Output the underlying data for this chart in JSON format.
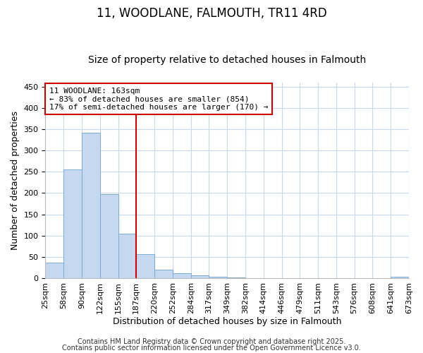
{
  "title": "11, WOODLANE, FALMOUTH, TR11 4RD",
  "subtitle": "Size of property relative to detached houses in Falmouth",
  "xlabel": "Distribution of detached houses by size in Falmouth",
  "ylabel": "Number of detached properties",
  "bar_values": [
    37,
    256,
    341,
    198,
    104,
    57,
    20,
    11,
    7,
    4,
    1,
    0,
    0,
    0,
    0,
    0,
    0,
    0,
    0,
    4
  ],
  "tick_labels": [
    "25sqm",
    "58sqm",
    "90sqm",
    "122sqm",
    "155sqm",
    "187sqm",
    "220sqm",
    "252sqm",
    "284sqm",
    "317sqm",
    "349sqm",
    "382sqm",
    "414sqm",
    "446sqm",
    "479sqm",
    "511sqm",
    "543sqm",
    "576sqm",
    "608sqm",
    "641sqm",
    "673sqm"
  ],
  "bar_color": "#c5d8f0",
  "bar_edge_color": "#7aadd4",
  "vline_color": "#cc0000",
  "ylim": [
    0,
    460
  ],
  "yticks": [
    0,
    50,
    100,
    150,
    200,
    250,
    300,
    350,
    400,
    450
  ],
  "annotation_line1": "11 WOODLANE: 163sqm",
  "annotation_line2": "← 83% of detached houses are smaller (854)",
  "annotation_line3": "17% of semi-detached houses are larger (170) →",
  "annotation_box_color": "#ffffff",
  "annotation_box_edge": "#cc0000",
  "footer1": "Contains HM Land Registry data © Crown copyright and database right 2025.",
  "footer2": "Contains public sector information licensed under the Open Government Licence v3.0.",
  "background_color": "#ffffff",
  "grid_color": "#c8d8ee",
  "title_fontsize": 12,
  "subtitle_fontsize": 10,
  "axis_label_fontsize": 9,
  "tick_fontsize": 8,
  "annotation_fontsize": 8,
  "footer_fontsize": 7
}
